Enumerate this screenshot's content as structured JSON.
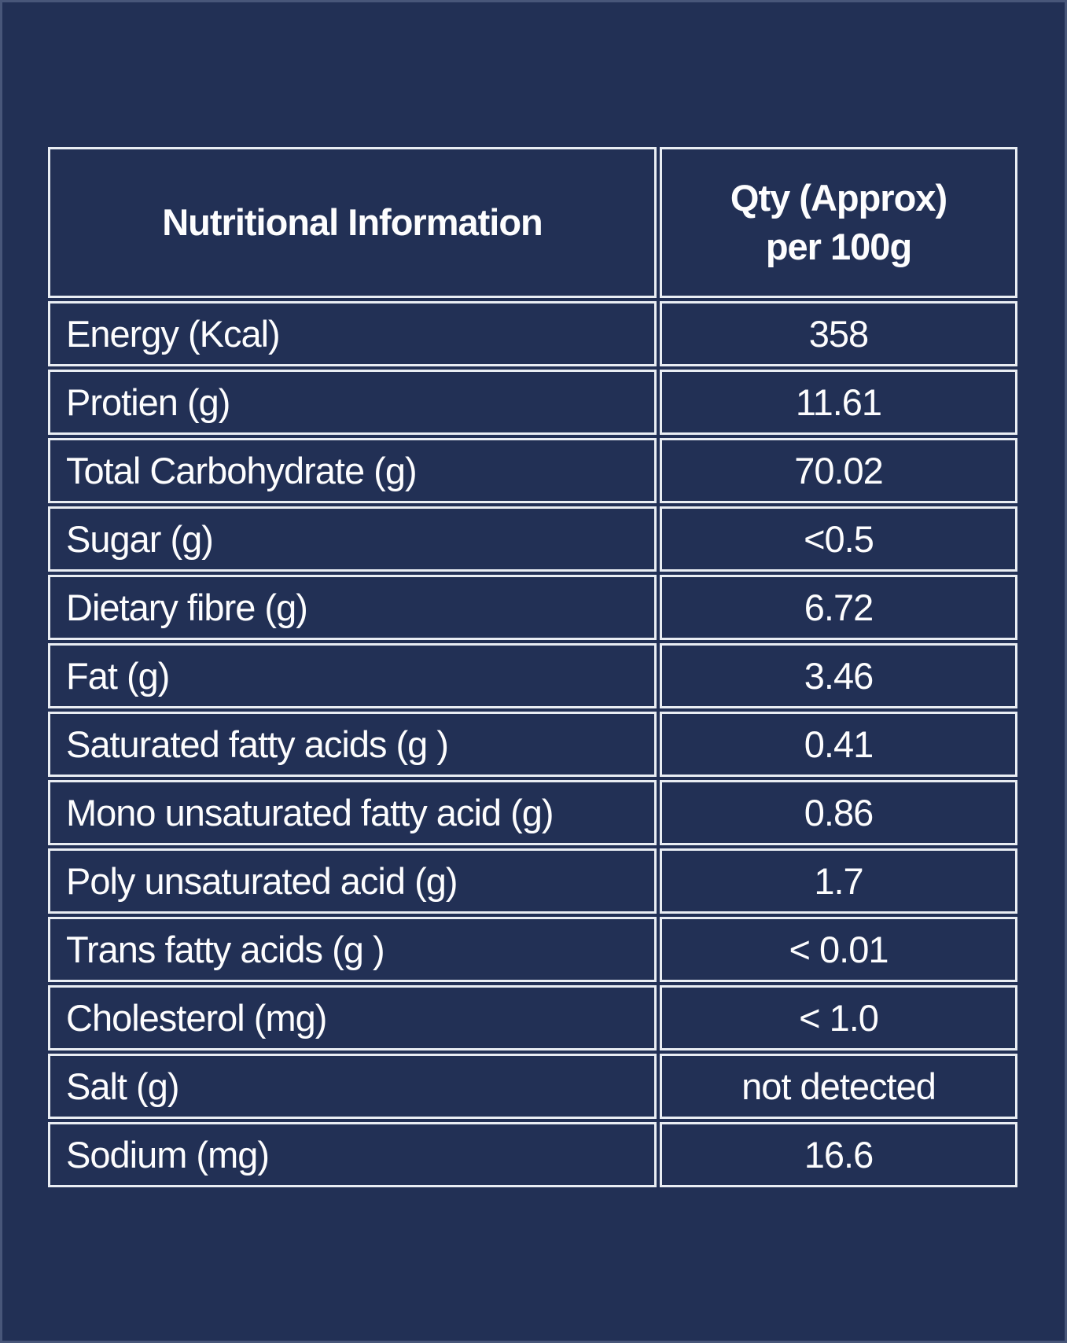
{
  "page": {
    "background_color": "#223055",
    "border_color": "#e9edf3",
    "text_color": "#fdfdfe"
  },
  "table": {
    "header": {
      "col1": "Nutritional Information",
      "col2_line1": "Qty (Approx)",
      "col2_line2": "per 100g"
    },
    "rows": [
      {
        "label": "Energy (Kcal)",
        "value": "358"
      },
      {
        "label": "Protien (g)",
        "value": "11.61"
      },
      {
        "label": "Total Carbohydrate (g)",
        "value": "70.02"
      },
      {
        "label": "Sugar (g)",
        "value": "<0.5"
      },
      {
        "label": "Dietary fibre (g)",
        "value": "6.72"
      },
      {
        "label": "Fat (g)",
        "value": "3.46"
      },
      {
        "label": "Saturated fatty acids (g )",
        "value": "0.41"
      },
      {
        "label": "Mono unsaturated fatty acid (g)",
        "value": "0.86"
      },
      {
        "label": "Poly unsaturated acid (g)",
        "value": "1.7"
      },
      {
        "label": "Trans fatty acids (g )",
        "value": "< 0.01"
      },
      {
        "label": "Cholesterol (mg)",
        "value": "< 1.0"
      },
      {
        "label": "Salt (g)",
        "value": "not detected"
      },
      {
        "label": "Sodium (mg)",
        "value": "16.6"
      }
    ]
  }
}
